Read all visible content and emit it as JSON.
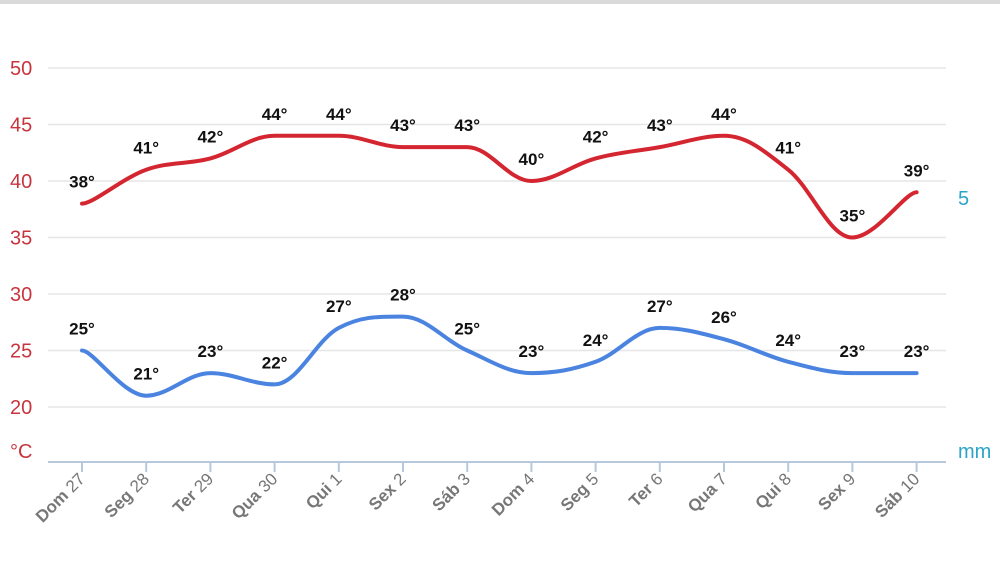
{
  "chart_data": {
    "type": "line",
    "x": [
      "Dom 27",
      "Seg 28",
      "Ter 29",
      "Qua 30",
      "Qui 1",
      "Sex 2",
      "Sáb 3",
      "Dom 4",
      "Seg 5",
      "Ter 6",
      "Qua 7",
      "Qui 8",
      "Sex 9",
      "Sáb 10"
    ],
    "series": [
      {
        "values": [
          38,
          41,
          42,
          44,
          44,
          43,
          43,
          40,
          42,
          43,
          44,
          41,
          35,
          39
        ],
        "color": "#d42630",
        "labels": [
          "38°",
          "41°",
          "42°",
          "44°",
          "44°",
          "43°",
          "43°",
          "40°",
          "42°",
          "43°",
          "44°",
          "41°",
          "35°",
          "39°"
        ]
      },
      {
        "values": [
          25,
          21,
          23,
          22,
          27,
          28,
          25,
          23,
          24,
          27,
          26,
          24,
          23,
          23
        ],
        "color": "#4a84e0",
        "labels": [
          "25°",
          "21°",
          "23°",
          "22°",
          "27°",
          "28°",
          "25°",
          "23°",
          "24°",
          "27°",
          "26°",
          "24°",
          "23°",
          "23°"
        ]
      }
    ],
    "y_ticks": [
      "50",
      "45",
      "40",
      "35",
      "30",
      "25",
      "20"
    ],
    "ylim": [
      15,
      50
    ],
    "ylabel": "°C",
    "y2_tick": "5",
    "y2label": "mm",
    "grid": true
  }
}
